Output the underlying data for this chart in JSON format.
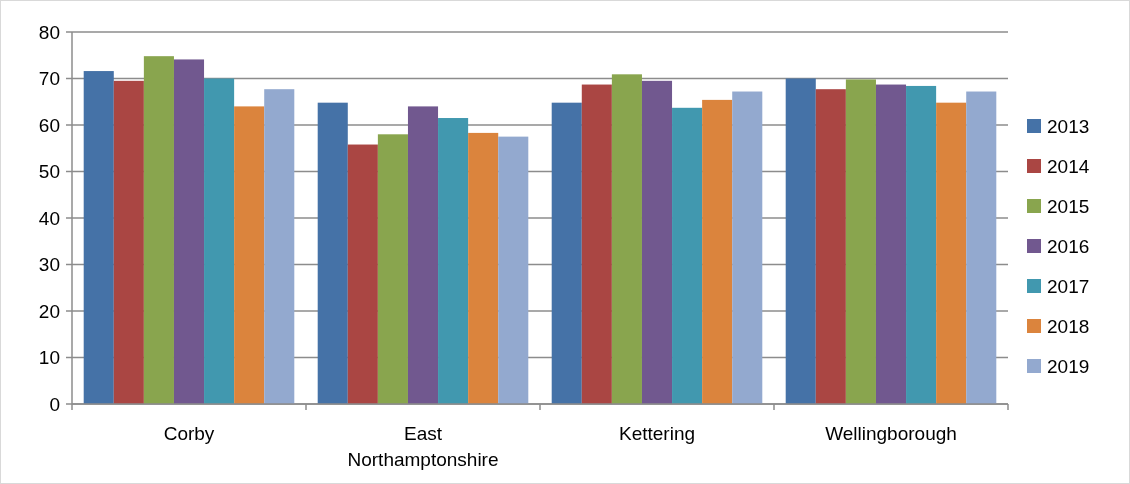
{
  "chart_data": {
    "type": "bar",
    "categories": [
      "Corby",
      "East Northamptonshire",
      "Kettering",
      "Wellingborough"
    ],
    "series": [
      {
        "name": "2013",
        "color": "#4572a7",
        "values": [
          71.6,
          64.8,
          64.8,
          70.0
        ]
      },
      {
        "name": "2014",
        "color": "#aa4643",
        "values": [
          69.5,
          55.8,
          68.7,
          67.7
        ]
      },
      {
        "name": "2015",
        "color": "#89a54e",
        "values": [
          74.8,
          58.0,
          70.9,
          69.8
        ]
      },
      {
        "name": "2016",
        "color": "#71588f",
        "values": [
          74.1,
          64.0,
          69.5,
          68.7
        ]
      },
      {
        "name": "2017",
        "color": "#4198af",
        "values": [
          70.0,
          61.5,
          63.7,
          68.4
        ]
      },
      {
        "name": "2018",
        "color": "#db843d",
        "values": [
          64.0,
          58.3,
          65.4,
          64.8
        ]
      },
      {
        "name": "2019",
        "color": "#93a9cf",
        "values": [
          67.7,
          57.5,
          67.2,
          67.2
        ]
      }
    ],
    "ylim": [
      0,
      80
    ],
    "yticks": [
      0,
      10,
      20,
      30,
      40,
      50,
      60,
      70,
      80
    ],
    "grid": "y",
    "legend": "right"
  }
}
